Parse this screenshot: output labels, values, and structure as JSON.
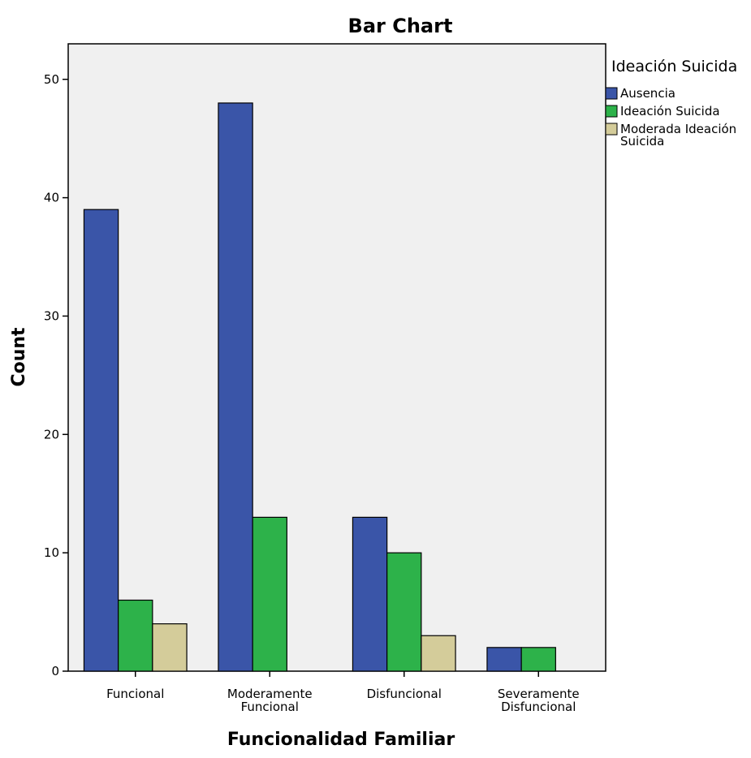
{
  "chart_data": {
    "type": "bar",
    "title": "Bar Chart",
    "xlabel": "Funcionalidad Familiar",
    "ylabel": "Count",
    "categories": [
      [
        "Funcional"
      ],
      [
        "Moderamente",
        "Funcional"
      ],
      [
        "Disfuncional"
      ],
      [
        "Severamente",
        "Disfuncional"
      ]
    ],
    "series": [
      {
        "name": "Ausencia",
        "color": "#3a55a8",
        "values": [
          39,
          48,
          13,
          2
        ]
      },
      {
        "name": "Ideación Suicida",
        "color": "#2db24a",
        "values": [
          6,
          13,
          10,
          2
        ]
      },
      {
        "name": "Moderada Ideación Suicida",
        "name_lines": [
          "Moderada Ideación",
          "Suicida"
        ],
        "color": "#d4cc9a",
        "values": [
          4,
          0,
          3,
          0
        ]
      }
    ],
    "ylim": [
      0,
      53
    ],
    "yticks": [
      0,
      10,
      20,
      30,
      40,
      50
    ],
    "legend": {
      "title": "Ideación Suicida",
      "position": "right"
    },
    "plot_background": "#f0f0f0",
    "grid": false
  }
}
